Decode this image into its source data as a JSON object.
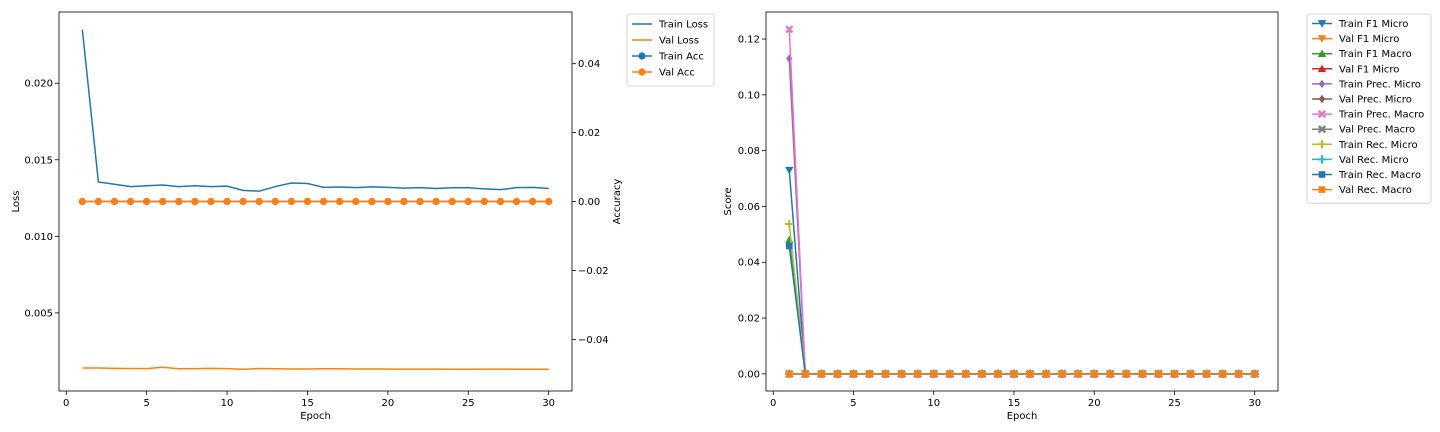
{
  "chart_data": [
    {
      "type": "line",
      "title": "",
      "xlabel": "Epoch",
      "ylabel": "Loss",
      "y2label": "Accuracy",
      "xlim": [
        -0.45,
        31.45
      ],
      "ylim": [
        -0.0001,
        0.02465
      ],
      "y2lim": [
        -0.055,
        0.055
      ],
      "xticks": [
        0,
        5,
        10,
        15,
        20,
        25,
        30
      ],
      "yticks": [
        0.005,
        0.01,
        0.015,
        0.02
      ],
      "ytick_labels": [
        "0.005",
        "0.010",
        "0.015",
        "0.020"
      ],
      "y2ticks": [
        -0.04,
        -0.02,
        0.0,
        0.02,
        0.04
      ],
      "y2tick_labels": [
        "−0.04",
        "−0.02",
        "0.00",
        "0.02",
        "0.04"
      ],
      "legend_position": "outside-top-right",
      "x": [
        1,
        2,
        3,
        4,
        5,
        6,
        7,
        8,
        9,
        10,
        11,
        12,
        13,
        14,
        15,
        16,
        17,
        18,
        19,
        20,
        21,
        22,
        23,
        24,
        25,
        26,
        27,
        28,
        29,
        30
      ],
      "series": [
        {
          "name": "Train Loss",
          "axis": "left",
          "color": "#1f77b4",
          "marker": "none",
          "values": [
            0.0235,
            0.01355,
            0.0134,
            0.01325,
            0.0133,
            0.01335,
            0.01325,
            0.0133,
            0.01325,
            0.01328,
            0.013,
            0.01295,
            0.01325,
            0.01348,
            0.01345,
            0.0132,
            0.01322,
            0.01318,
            0.01323,
            0.0132,
            0.01315,
            0.01318,
            0.01312,
            0.01317,
            0.01317,
            0.0131,
            0.01305,
            0.01318,
            0.0132,
            0.01312
          ]
        },
        {
          "name": "Val Loss",
          "axis": "left",
          "color": "#ff7f0e",
          "marker": "none",
          "values": [
            0.0014,
            0.0014,
            0.00138,
            0.00137,
            0.00136,
            0.00145,
            0.00135,
            0.00136,
            0.00138,
            0.00136,
            0.00132,
            0.00137,
            0.00135,
            0.00134,
            0.00134,
            0.00135,
            0.00135,
            0.00134,
            0.00134,
            0.00133,
            0.00133,
            0.00133,
            0.00133,
            0.00132,
            0.00132,
            0.00133,
            0.00133,
            0.00132,
            0.00132,
            0.00132
          ]
        },
        {
          "name": "Train Acc",
          "axis": "right",
          "color": "#1f77b4",
          "marker": "circle",
          "values": [
            0,
            0,
            0,
            0,
            0,
            0,
            0,
            0,
            0,
            0,
            0,
            0,
            0,
            0,
            0,
            0,
            0,
            0,
            0,
            0,
            0,
            0,
            0,
            0,
            0,
            0,
            0,
            0,
            0,
            0
          ]
        },
        {
          "name": "Val Acc",
          "axis": "right",
          "color": "#ff7f0e",
          "marker": "circle",
          "values": [
            0,
            0,
            0,
            0,
            0,
            0,
            0,
            0,
            0,
            0,
            0,
            0,
            0,
            0,
            0,
            0,
            0,
            0,
            0,
            0,
            0,
            0,
            0,
            0,
            0,
            0,
            0,
            0,
            0,
            0
          ]
        }
      ]
    },
    {
      "type": "line",
      "title": "",
      "xlabel": "Epoch",
      "ylabel": "Score",
      "xlim": [
        -0.45,
        31.45
      ],
      "ylim": [
        -0.00615,
        0.1297
      ],
      "xticks": [
        0,
        5,
        10,
        15,
        20,
        25,
        30
      ],
      "yticks": [
        0.0,
        0.02,
        0.04,
        0.06,
        0.08,
        0.1,
        0.12
      ],
      "ytick_labels": [
        "0.00",
        "0.02",
        "0.04",
        "0.06",
        "0.08",
        "0.10",
        "0.12"
      ],
      "legend_position": "outside-top-right",
      "x": [
        1,
        2,
        3,
        4,
        5,
        6,
        7,
        8,
        9,
        10,
        11,
        12,
        13,
        14,
        15,
        16,
        17,
        18,
        19,
        20,
        21,
        22,
        23,
        24,
        25,
        26,
        27,
        28,
        29,
        30
      ],
      "series": [
        {
          "name": "Train F1 Micro",
          "color": "#1f77b4",
          "marker": "triangle-down",
          "first": 0.073
        },
        {
          "name": "Val F1 Micro",
          "color": "#ff7f0e",
          "marker": "triangle-down",
          "first": 0.0
        },
        {
          "name": "Train F1 Macro",
          "color": "#2ca02c",
          "marker": "triangle-up",
          "first": 0.048
        },
        {
          "name": "Val F1 Micro",
          "color": "#d62728",
          "marker": "triangle-up",
          "first": 0.0
        },
        {
          "name": "Train Prec. Micro",
          "color": "#9467bd",
          "marker": "diamond",
          "first": 0.113
        },
        {
          "name": "Val Prec. Micro",
          "color": "#8c564b",
          "marker": "diamond",
          "first": 0.0
        },
        {
          "name": "Train Prec. Macro",
          "color": "#e377c2",
          "marker": "x",
          "first": 0.1235
        },
        {
          "name": "Val Prec. Macro",
          "color": "#7f7f7f",
          "marker": "x",
          "first": 0.0
        },
        {
          "name": "Train Rec. Micro",
          "color": "#bcbd22",
          "marker": "plus",
          "first": 0.0537
        },
        {
          "name": "Val Rec. Micro",
          "color": "#17becf",
          "marker": "plus",
          "first": 0.0
        },
        {
          "name": "Train Rec. Macro",
          "color": "#1f77b4",
          "marker": "square",
          "first": 0.0458
        },
        {
          "name": "Val Rec. Macro",
          "color": "#ff7f0e",
          "marker": "square",
          "first": 0.0
        }
      ],
      "after_first_value": 0.0
    }
  ]
}
